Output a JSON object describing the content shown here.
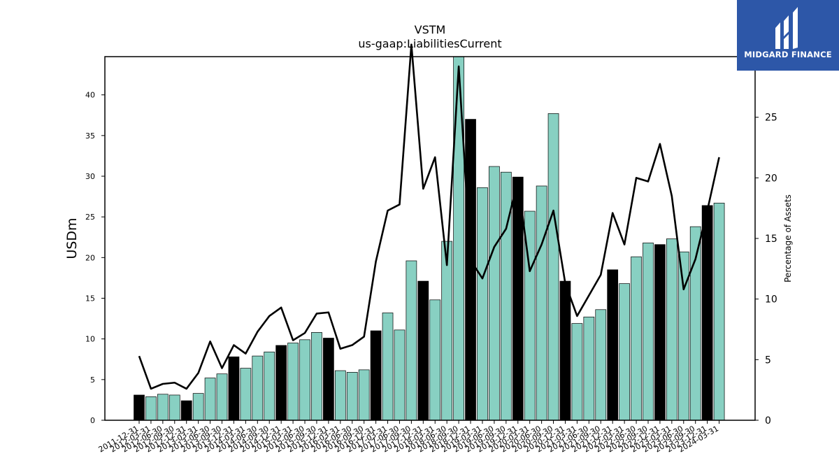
{
  "logo": {
    "text": "MIDGARD FINANCE",
    "color": "#2d57a8"
  },
  "chart_data": {
    "type": "bar",
    "title": "VSTM",
    "subtitle": "us-gaap:LiabilitiesCurrent",
    "ylabel": "USDm",
    "y2label": "Percentage of Assets",
    "ylim": [
      0,
      44.7
    ],
    "y2lim": [
      0,
      30.0
    ],
    "yticks": [
      0,
      5,
      10,
      15,
      20,
      25,
      30,
      35,
      40
    ],
    "y2ticks": [
      0,
      5,
      10,
      15,
      20,
      25,
      30
    ],
    "colors": {
      "annual": "#000000",
      "quarterly": "#88d0c2",
      "line": "#000000"
    },
    "categories": [
      "2011-12-31",
      "2012-03-31",
      "2012-06-30",
      "2012-09-30",
      "2012-12-31",
      "2013-03-31",
      "2013-06-30",
      "2013-09-30",
      "2013-12-31",
      "2014-03-31",
      "2014-06-30",
      "2014-09-30",
      "2014-12-31",
      "2015-03-31",
      "2015-06-30",
      "2015-09-30",
      "2015-12-31",
      "2016-03-31",
      "2016-06-30",
      "2016-09-30",
      "2016-12-31",
      "2017-03-31",
      "2017-06-30",
      "2017-09-30",
      "2017-12-31",
      "2018-03-31",
      "2018-06-30",
      "2018-09-30",
      "2018-12-31",
      "2019-03-31",
      "2019-06-30",
      "2019-09-30",
      "2019-12-31",
      "2020-03-31",
      "2020-06-30",
      "2020-09-30",
      "2020-12-31",
      "2021-03-31",
      "2021-06-30",
      "2021-09-30",
      "2021-12-31",
      "2022-03-31",
      "2022-06-30",
      "2022-09-30",
      "2022-12-31",
      "2023-03-31",
      "2023-06-30",
      "2023-09-30",
      "2023-12-31",
      "2024-03-31"
    ],
    "series": [
      {
        "kind": "bar",
        "values": [
          3.1,
          2.9,
          3.2,
          3.1,
          2.4,
          3.3,
          5.2,
          5.7,
          7.8,
          6.4,
          7.9,
          8.4,
          9.2,
          9.5,
          9.9,
          10.8,
          10.1,
          6.1,
          5.9,
          6.2,
          11.0,
          13.2,
          11.1,
          19.6,
          17.1,
          14.8,
          22.0,
          44.7,
          37.0,
          28.6,
          31.2,
          30.5,
          29.9,
          25.7,
          28.8,
          37.7,
          17.1,
          11.9,
          12.7,
          13.6,
          18.5,
          16.8,
          20.1,
          21.8,
          21.6,
          22.3,
          20.7,
          23.8,
          26.4,
          26.7
        ],
        "annual": [
          true,
          false,
          false,
          false,
          true,
          false,
          false,
          false,
          true,
          false,
          false,
          false,
          true,
          false,
          false,
          false,
          true,
          false,
          false,
          false,
          true,
          false,
          false,
          false,
          true,
          false,
          false,
          false,
          true,
          false,
          false,
          false,
          true,
          false,
          false,
          false,
          true,
          false,
          false,
          false,
          true,
          false,
          false,
          false,
          true,
          false,
          false,
          false,
          true,
          false
        ]
      },
      {
        "kind": "line",
        "axis": "right",
        "values": [
          5.3,
          2.6,
          3.0,
          3.1,
          2.6,
          3.9,
          6.5,
          4.3,
          6.2,
          5.5,
          7.3,
          8.6,
          9.3,
          6.6,
          7.2,
          8.8,
          8.9,
          5.9,
          6.2,
          6.9,
          13.1,
          17.3,
          17.8,
          31.0,
          19.1,
          21.7,
          12.8,
          29.2,
          13.2,
          11.7,
          14.3,
          15.8,
          19.8,
          12.3,
          14.5,
          17.3,
          11.3,
          8.6,
          10.3,
          12.0,
          17.1,
          14.5,
          20.0,
          19.7,
          22.8,
          18.5,
          10.8,
          13.3,
          17.3,
          21.7
        ]
      }
    ]
  }
}
